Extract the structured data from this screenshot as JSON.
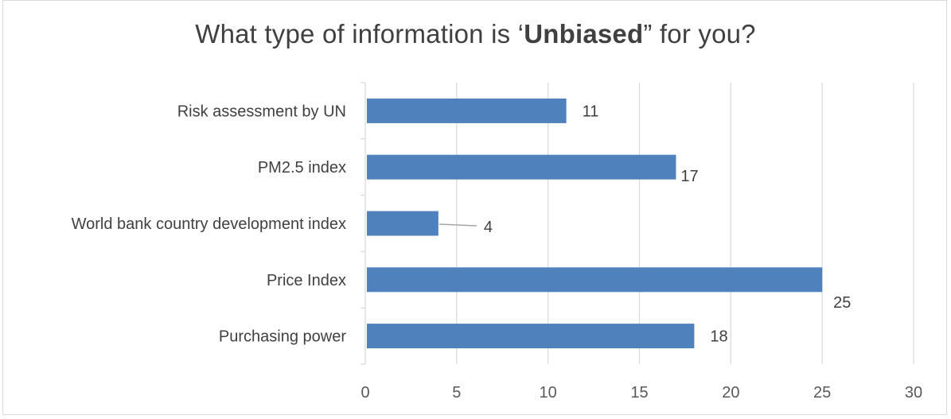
{
  "chart_data": {
    "type": "bar",
    "orientation": "horizontal",
    "title_parts": {
      "prefix": "What type of information is ‘",
      "emphasis": "Unbiased",
      "suffix": "” for you?"
    },
    "categories": [
      "Risk assessment by UN",
      "PM2.5 index",
      "World bank country development index",
      "Price Index",
      "Purchasing power"
    ],
    "values": [
      11,
      17,
      4,
      25,
      18
    ],
    "xlim": [
      0,
      30
    ],
    "x_ticks": [
      0,
      5,
      10,
      15,
      20,
      25,
      30
    ],
    "grid": true,
    "legend": "none",
    "bar_color": "#4f81bd",
    "grid_color": "#d9d9d9"
  }
}
